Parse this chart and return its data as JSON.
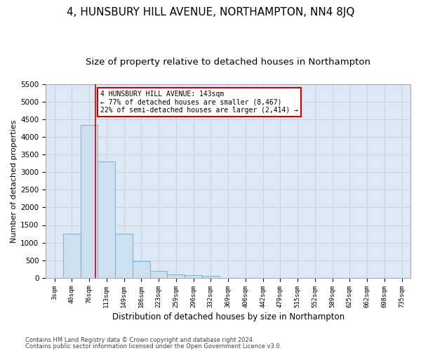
{
  "title": "4, HUNSBURY HILL AVENUE, NORTHAMPTON, NN4 8JQ",
  "subtitle": "Size of property relative to detached houses in Northampton",
  "xlabel": "Distribution of detached houses by size in Northampton",
  "ylabel": "Number of detached properties",
  "footer_line1": "Contains HM Land Registry data © Crown copyright and database right 2024.",
  "footer_line2": "Contains public sector information licensed under the Open Government Licence v3.0.",
  "categories": [
    "3sqm",
    "40sqm",
    "76sqm",
    "113sqm",
    "149sqm",
    "186sqm",
    "223sqm",
    "259sqm",
    "296sqm",
    "332sqm",
    "369sqm",
    "406sqm",
    "442sqm",
    "479sqm",
    "515sqm",
    "552sqm",
    "589sqm",
    "625sqm",
    "662sqm",
    "698sqm",
    "735sqm"
  ],
  "values": [
    0,
    1250,
    4350,
    3300,
    1250,
    475,
    200,
    100,
    75,
    50,
    0,
    0,
    0,
    0,
    0,
    0,
    0,
    0,
    0,
    0,
    0
  ],
  "bar_color": "#cce0f0",
  "bar_edge_color": "#6aabcf",
  "property_line_x": 2.85,
  "property_line_color": "#cc0000",
  "annotation_text": "4 HUNSBURY HILL AVENUE: 143sqm\n← 77% of detached houses are smaller (8,467)\n22% of semi-detached houses are larger (2,414) →",
  "annotation_box_color": "#ffffff",
  "annotation_box_edge": "#cc0000",
  "ylim": [
    0,
    5500
  ],
  "yticks": [
    0,
    500,
    1000,
    1500,
    2000,
    2500,
    3000,
    3500,
    4000,
    4500,
    5000,
    5500
  ],
  "background_color": "#ffffff",
  "grid_color": "#cccccc",
  "title_fontsize": 11,
  "subtitle_fontsize": 9.5,
  "ax_bg_color": "#dce8f5"
}
